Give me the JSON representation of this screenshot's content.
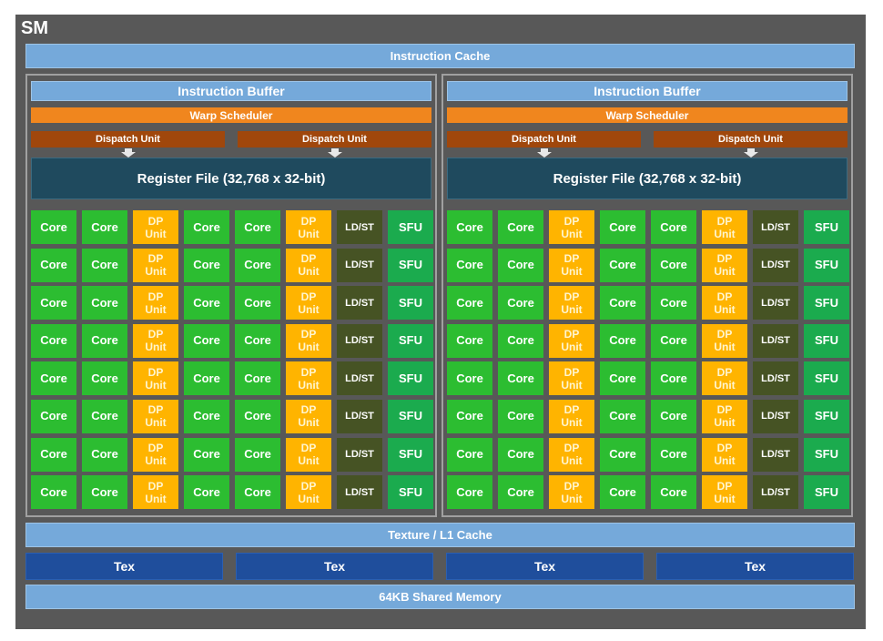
{
  "sm_title": "SM",
  "instruction_cache": "Instruction Cache",
  "halves": [
    {
      "instruction_buffer": "Instruction Buffer",
      "warp_scheduler": "Warp Scheduler",
      "dispatch_units": [
        "Dispatch Unit",
        "Dispatch Unit"
      ],
      "register_file": "Register File (32,768 x 32-bit)"
    },
    {
      "instruction_buffer": "Instruction Buffer",
      "warp_scheduler": "Warp Scheduler",
      "dispatch_units": [
        "Dispatch Unit",
        "Dispatch Unit"
      ],
      "register_file": "Register File (32,768 x 32-bit)"
    }
  ],
  "unit_labels": {
    "core": "Core",
    "dp_line1": "DP",
    "dp_line2": "Unit",
    "ldst": "LD/ST",
    "sfu": "SFU"
  },
  "grid": {
    "rows": 8,
    "columns": [
      "core",
      "core",
      "dp",
      "core",
      "core",
      "dp",
      "ldst",
      "sfu"
    ]
  },
  "texture_l1_cache": "Texture / L1 Cache",
  "tex_units": [
    "Tex",
    "Tex",
    "Tex",
    "Tex"
  ],
  "shared_memory": "64KB Shared Memory",
  "colors": {
    "frame": "#585858",
    "light_blue": "#75a9da",
    "warp_scheduler": "#f0861e",
    "dispatch_unit": "#a0470c",
    "register_file": "#1f4a5e",
    "core": "#2cbd31",
    "dp_unit": "#ffb400",
    "ldst": "#465324",
    "sfu": "#1bab4e",
    "tex": "#1f4e9c"
  }
}
